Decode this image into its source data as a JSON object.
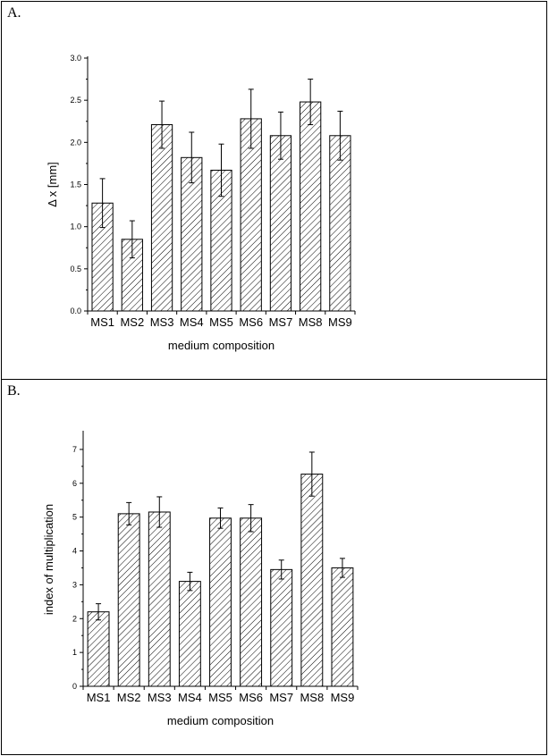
{
  "chart_data": [
    {
      "type": "bar",
      "panel_label": "A.",
      "categories": [
        "MS1",
        "MS2",
        "MS3",
        "MS4",
        "MS5",
        "MS6",
        "MS7",
        "MS8",
        "MS9"
      ],
      "values": [
        1.28,
        0.85,
        2.21,
        1.82,
        1.67,
        2.28,
        2.08,
        2.48,
        2.08
      ],
      "errors": [
        0.29,
        0.22,
        0.28,
        0.3,
        0.31,
        0.35,
        0.28,
        0.27,
        0.29
      ],
      "xlabel": "medium composition",
      "ylabel": "Δ x [mm]",
      "ylim": [
        0,
        3.0
      ],
      "yticks": [
        "0.0",
        "0.5",
        "1.0",
        "1.5",
        "2.0",
        "2.5",
        "3.0"
      ],
      "grid": false,
      "bar_pattern": "diagonal-hatch"
    },
    {
      "type": "bar",
      "panel_label": "B.",
      "categories": [
        "MS1",
        "MS2",
        "MS3",
        "MS4",
        "MS5",
        "MS6",
        "MS7",
        "MS8",
        "MS9"
      ],
      "values": [
        2.2,
        5.1,
        5.15,
        3.1,
        4.97,
        4.97,
        3.45,
        6.27,
        3.5
      ],
      "errors": [
        0.24,
        0.33,
        0.45,
        0.27,
        0.3,
        0.4,
        0.28,
        0.65,
        0.28
      ],
      "xlabel": "medium composition",
      "ylabel": "index of multiplication",
      "ylim": [
        0,
        7.5
      ],
      "yticks": [
        "0",
        "1",
        "2",
        "3",
        "4",
        "5",
        "6",
        "7"
      ],
      "grid": false,
      "bar_pattern": "diagonal-hatch"
    }
  ]
}
